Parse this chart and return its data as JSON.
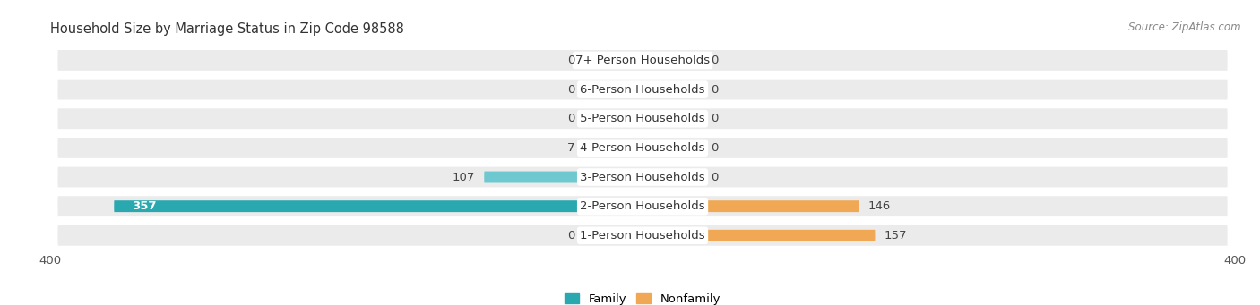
{
  "title": "Household Size by Marriage Status in Zip Code 98588",
  "source": "Source: ZipAtlas.com",
  "categories": [
    "7+ Person Households",
    "6-Person Households",
    "5-Person Households",
    "4-Person Households",
    "3-Person Households",
    "2-Person Households",
    "1-Person Households"
  ],
  "family": [
    0,
    0,
    0,
    7,
    107,
    357,
    0
  ],
  "nonfamily": [
    0,
    0,
    0,
    0,
    0,
    146,
    157
  ],
  "family_color_light": "#6dc8d0",
  "family_color_dark": "#2aa8b0",
  "nonfamily_color_light": "#f5c898",
  "nonfamily_color_dark": "#f0a855",
  "dummy_bar_size": 40,
  "xlim_left": -400,
  "xlim_right": 400,
  "background_color": "#ffffff",
  "row_bg_color": "#ebebeb",
  "row_bg_dark": "#dcdcdc",
  "bar_height": 0.72,
  "inner_bar_ratio": 0.55,
  "label_fontsize": 9.5,
  "title_fontsize": 10.5,
  "source_fontsize": 8.5,
  "value_fontsize": 9.5
}
